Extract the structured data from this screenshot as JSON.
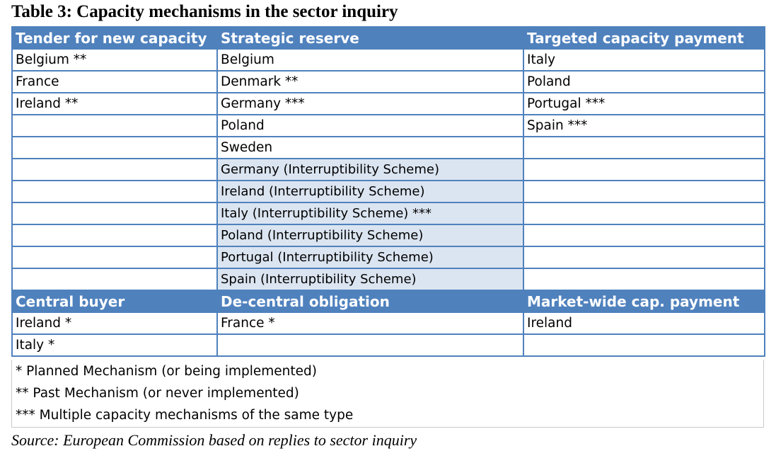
{
  "title": "Table 3: Capacity mechanisms in the sector inquiry",
  "section1": {
    "headers": [
      "Tender for new capacity",
      "Strategic reserve",
      "Targeted capacity payment"
    ],
    "rows": [
      [
        "Belgium **",
        "Belgium",
        "Italy"
      ],
      [
        "France",
        "Denmark **",
        "Poland"
      ],
      [
        "Ireland **",
        "Germany ***",
        "Portugal ***"
      ],
      [
        "",
        "Poland",
        "Spain ***"
      ],
      [
        "",
        "Sweden",
        ""
      ],
      [
        "",
        "Germany (Interruptibility Scheme)",
        ""
      ],
      [
        "",
        "Ireland (Interruptibility Scheme)",
        ""
      ],
      [
        "",
        "Italy (Interruptibility Scheme) ***",
        ""
      ],
      [
        "",
        "Poland (Interruptibility Scheme)",
        ""
      ],
      [
        "",
        "Portugal (Interruptibility Scheme)",
        ""
      ],
      [
        "",
        "Spain (Interruptibility Scheme)",
        ""
      ]
    ]
  },
  "section2": {
    "headers": [
      "Central buyer",
      "De-central obligation",
      "Market-wide cap. payment"
    ],
    "rows": [
      [
        "Ireland *",
        "France *",
        "Ireland"
      ],
      [
        "Italy *",
        "",
        ""
      ]
    ]
  },
  "notes": [
    "* Planned Mechanism (or being implemented)",
    "** Past Mechanism (or never implemented)",
    "*** Multiple capacity mechanisms of the same type"
  ],
  "source": "Source: European Commission based on replies to sector inquiry",
  "colors": {
    "header_bg": "#4f81bd",
    "header_text": "#ffffff",
    "interruptibility_shade": "#dbe5f1",
    "border": "#4f81bd"
  }
}
